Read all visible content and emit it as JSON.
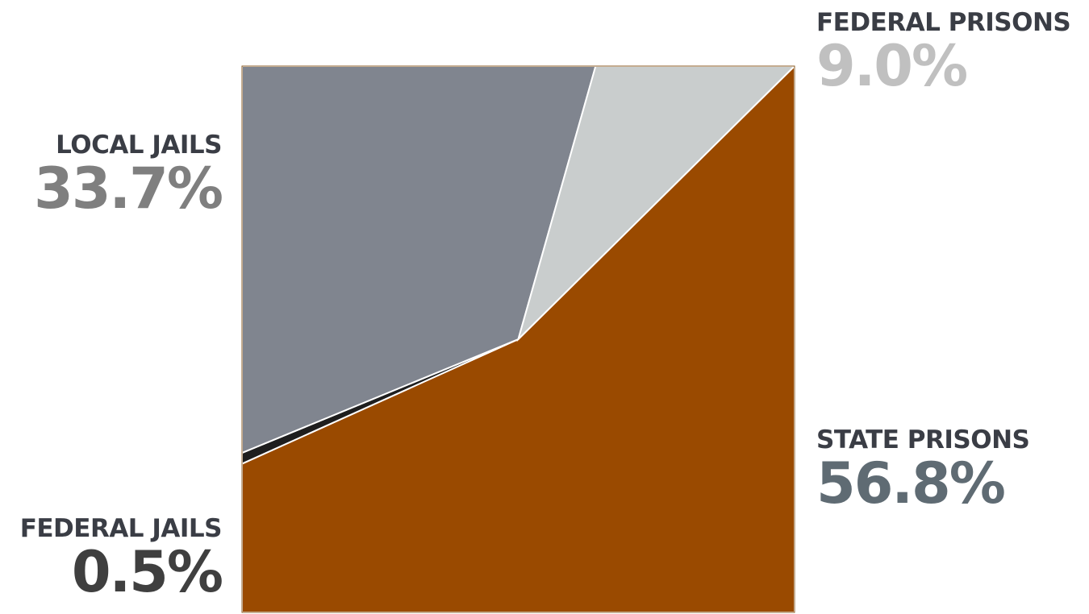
{
  "chart_data": {
    "type": "square-area",
    "categories": [
      "STATE PRISONS",
      "FEDERAL JAILS",
      "LOCAL JAILS",
      "FEDERAL PRISONS"
    ],
    "values": [
      56.8,
      0.5,
      33.7,
      9.0
    ],
    "value_labels": [
      "56.8%",
      "0.5%",
      "33.7%",
      "9.0%"
    ],
    "colors": [
      "#9a4a00",
      "#1e1e1e",
      "#80858f",
      "#c9cdcd"
    ],
    "label_colors": [
      "#5f6b73",
      "#3f3f3f",
      "#7f7f7f",
      "#c0c0c0"
    ]
  }
}
